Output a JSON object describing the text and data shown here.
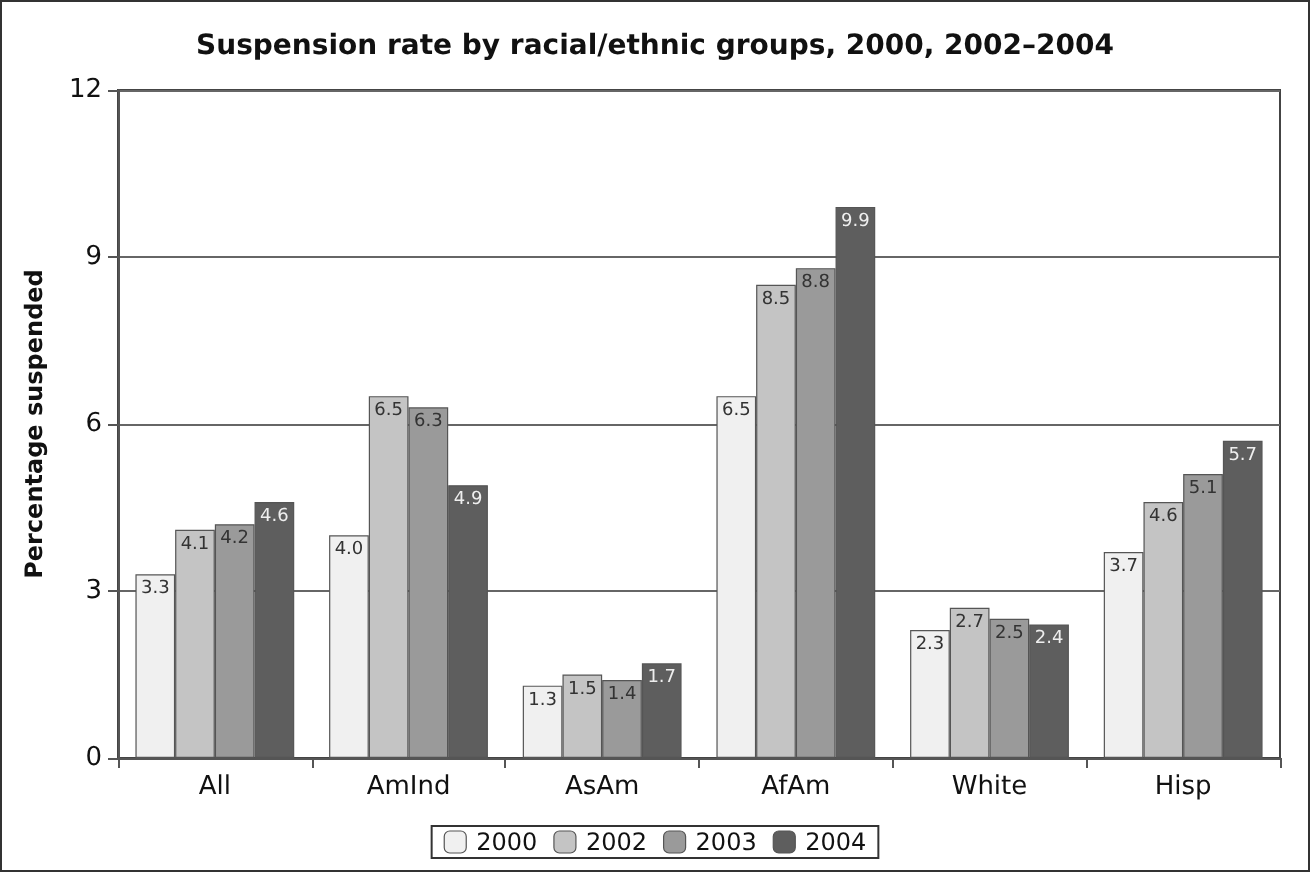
{
  "chart_data": {
    "type": "bar",
    "title": "Suspension rate by racial/ethnic groups, 2000, 2002–2004",
    "ylabel": "Percentage suspended",
    "categories": [
      "All",
      "AmInd",
      "AsAm",
      "AfAm",
      "White",
      "Hisp"
    ],
    "series": [
      {
        "name": "2000",
        "color": "#f0f0f0",
        "values": [
          3.3,
          4.0,
          1.3,
          6.5,
          2.3,
          3.7
        ],
        "value_labels": [
          "3.3",
          "4.0",
          "1.3",
          "6.5",
          "2.3",
          "3.7"
        ]
      },
      {
        "name": "2002",
        "color": "#c4c4c4",
        "values": [
          4.1,
          6.5,
          1.5,
          8.5,
          2.7,
          4.6
        ],
        "value_labels": [
          "4.1",
          "6.5",
          "1.5",
          "8.5",
          "2.7",
          "4.6"
        ]
      },
      {
        "name": "2003",
        "color": "#9a9a9a",
        "values": [
          4.2,
          6.3,
          1.4,
          8.8,
          2.5,
          5.1
        ],
        "value_labels": [
          "4.2",
          "6.3",
          "1.4",
          "8.8",
          "2.5",
          "5.1"
        ]
      },
      {
        "name": "2004",
        "color": "#5e5e5e",
        "values": [
          4.6,
          4.9,
          1.7,
          9.9,
          2.4,
          5.7
        ],
        "value_labels": [
          "4.6",
          "4.9",
          "1.7",
          "9.9",
          "2.4",
          "5.7"
        ]
      }
    ],
    "ylim": [
      0,
      12
    ],
    "yticks": [
      0,
      3,
      6,
      9,
      12
    ],
    "grid": "y",
    "legend": "bottom"
  }
}
